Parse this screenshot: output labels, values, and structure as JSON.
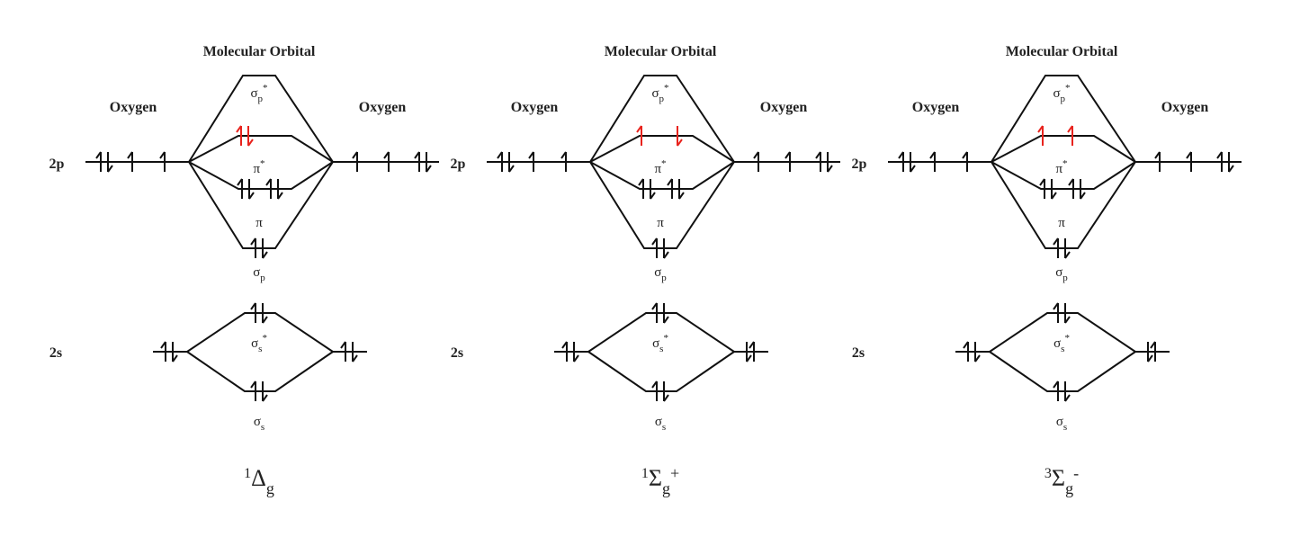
{
  "colors": {
    "line": "#111111",
    "electron": "#111111",
    "excited_electron": "#e8231d",
    "text": "#222222"
  },
  "labels": {
    "molecular_orbital": "Molecular Orbital",
    "oxygen": "Oxygen",
    "level_2p": "2p",
    "level_2s": "2s",
    "sigma": "σ",
    "pi": "π",
    "sub_p": "p",
    "sub_s": "s",
    "star": "*"
  },
  "diagrams": [
    {
      "state": {
        "mult": "1",
        "symbol": "Δ",
        "sub": "g",
        "sup": ""
      },
      "pi_star": {
        "left": "up-down",
        "right": "none"
      },
      "atom_2s_right_reversed": false
    },
    {
      "state": {
        "mult": "1",
        "symbol": "Σ",
        "sub": "g",
        "sup": "+"
      },
      "pi_star": {
        "left": "up",
        "right": "down"
      },
      "atom_2s_right_reversed": true
    },
    {
      "state": {
        "mult": "3",
        "symbol": "Σ",
        "sub": "g",
        "sup": "-"
      },
      "pi_star": {
        "left": "up",
        "right": "up"
      },
      "atom_2s_right_reversed": true
    }
  ]
}
